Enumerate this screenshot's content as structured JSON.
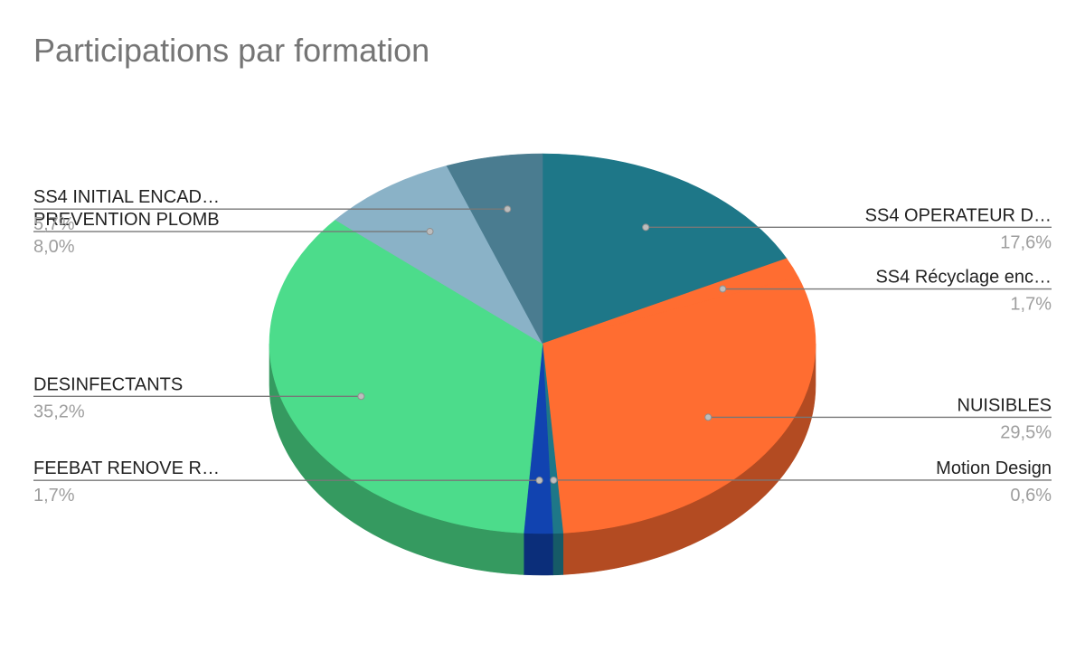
{
  "chart_data": {
    "type": "pie",
    "title": "Participations par formation",
    "decimal_separator": ",",
    "slices": [
      {
        "label": "SS4 OPERATEUR D…",
        "value": 17.6,
        "value_label": "17,6%",
        "color": "#1e7788",
        "side_color": "#165a67"
      },
      {
        "label": "SS4 Récyclage  enc…",
        "value": 1.7,
        "value_label": "1,7%",
        "color": "#ff6d31",
        "side_color": "#b74c20"
      },
      {
        "label": "NUISIBLES",
        "value": 29.5,
        "value_label": "29,5%",
        "color": "#ff6d31",
        "side_color": "#b34b22"
      },
      {
        "label": "Motion Design",
        "value": 0.6,
        "value_label": "0,6%",
        "color": "#1e7788",
        "side_color": "#165a67"
      },
      {
        "label": "FEEBAT RENOVE R…",
        "value": 1.7,
        "value_label": "1,7%",
        "color": "#1143b0",
        "side_color": "#0b2e7a"
      },
      {
        "label": "DESINFECTANTS",
        "value": 35.2,
        "value_label": "35,2%",
        "color": "#4cdc8b",
        "side_color": "#359a60"
      },
      {
        "label": "PREVENTION PLOMB",
        "value": 8.0,
        "value_label": "8,0%",
        "color": "#8ab2c7",
        "side_color": "#60808f"
      },
      {
        "label": "SS4 INITIAL ENCAD…",
        "value": 5.7,
        "value_label": "5,7%",
        "color": "#4a7c90",
        "side_color": "#345866"
      }
    ]
  }
}
